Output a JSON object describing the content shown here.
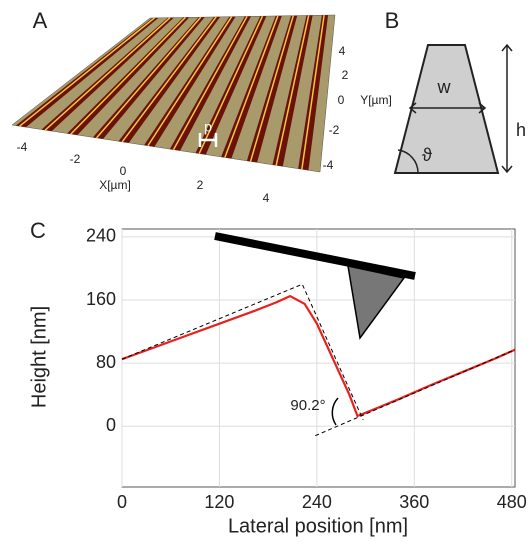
{
  "panels": {
    "a": {
      "label": "A",
      "x_ticks": [
        "-4",
        "-2",
        "0",
        "2",
        "4"
      ],
      "x_label": "X[µm]",
      "y_ticks": [
        "4",
        "2",
        "0",
        "-2",
        "-4"
      ],
      "y_label": "Y[µm]",
      "pitch_label": "p"
    },
    "b": {
      "label": "B",
      "width_label": "w",
      "height_label": "h",
      "angle_label": "ϑ"
    },
    "c": {
      "label": "C"
    }
  },
  "chart_data": {
    "type": "line",
    "x_label": "Lateral position [nm]",
    "y_label": "Height [nm]",
    "annotation": "90.2°",
    "xlim": [
      0,
      484
    ],
    "ylim": [
      -77,
      250
    ],
    "xticks": [
      0,
      120,
      240,
      360,
      480
    ],
    "yticks": [
      0,
      80,
      160,
      240
    ],
    "grid": true,
    "series": [
      {
        "color": "#e8211d",
        "style": "solid",
        "x": [
          0,
          40,
          80,
          120,
          160,
          190,
          207,
          225,
          240,
          260,
          280,
          290,
          300,
          340,
          380,
          420,
          460,
          484
        ],
        "values": [
          85,
          100,
          115,
          130,
          145,
          157,
          165,
          155,
          130,
          85,
          40,
          13,
          17,
          34,
          52,
          69,
          86,
          97
        ]
      },
      {
        "color": "#000000",
        "style": "dashed",
        "x": [
          0,
          222,
          297
        ],
        "values": [
          85,
          180,
          8
        ]
      },
      {
        "color": "#000000",
        "style": "dashed",
        "x": [
          238,
          484
        ],
        "values": [
          -12,
          97
        ]
      }
    ]
  }
}
